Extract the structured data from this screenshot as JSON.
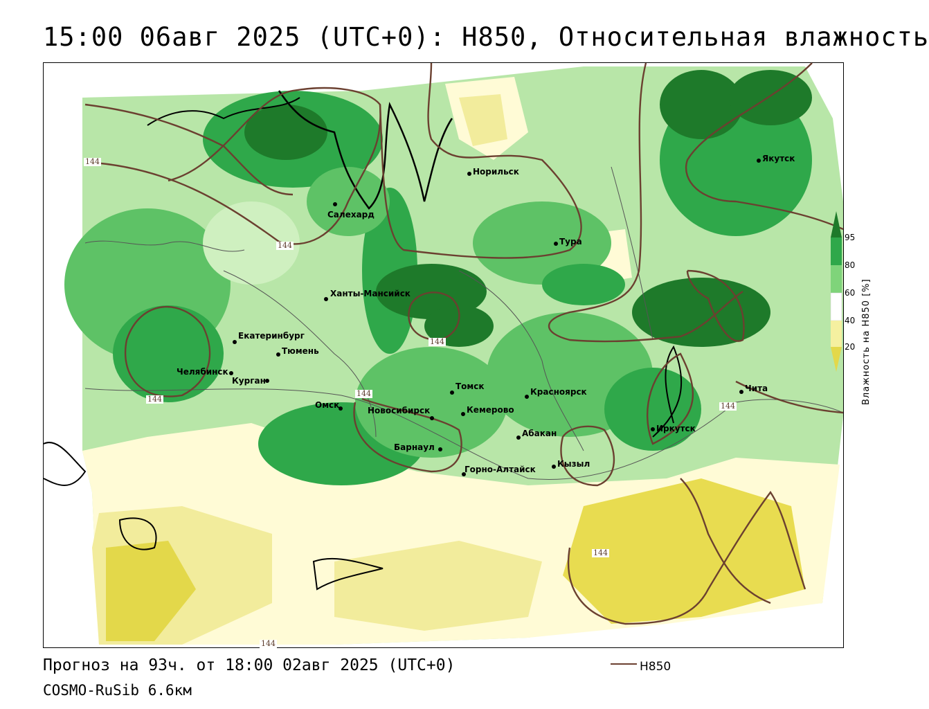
{
  "title": "15:00 06авг 2025 (UTC+0): H850, Относительная влажность",
  "footer": {
    "forecast": "Прогноз на 93ч. от 18:00 02авг 2025 (UTC+0)",
    "model": "COSMO-RuSib 6.6км",
    "contour_legend": "H850"
  },
  "colorbar": {
    "title": "Влажность на H850 [%]",
    "ticks": [
      "95",
      "80",
      "60",
      "40",
      "20"
    ],
    "colors": {
      "c95": "#1e7a2a",
      "c80": "#2fa84a",
      "c60": "#7fd47a",
      "c50": "#cff0c0",
      "c40": "#fffbd6",
      "c20": "#f5f0a0",
      "c0": "#e3d84a"
    }
  },
  "contour_value": "144",
  "contour_labels": [
    "144",
    "144",
    "144",
    "144",
    "144",
    "144",
    "144",
    "144"
  ],
  "cities": [
    {
      "name": "Норильск"
    },
    {
      "name": "Якутск"
    },
    {
      "name": "Салехард"
    },
    {
      "name": "Тура"
    },
    {
      "name": "Ханты-Мансийск"
    },
    {
      "name": "Екатеринбург"
    },
    {
      "name": "Тюмень"
    },
    {
      "name": "Челябинск"
    },
    {
      "name": "Курган"
    },
    {
      "name": "Омск"
    },
    {
      "name": "Новосибирск"
    },
    {
      "name": "Томск"
    },
    {
      "name": "Кемерово"
    },
    {
      "name": "Красноярск"
    },
    {
      "name": "Абакан"
    },
    {
      "name": "Барнаул"
    },
    {
      "name": "Горно-Алтайск"
    },
    {
      "name": "Кызыл"
    },
    {
      "name": "Иркутск"
    },
    {
      "name": "Чита"
    }
  ]
}
